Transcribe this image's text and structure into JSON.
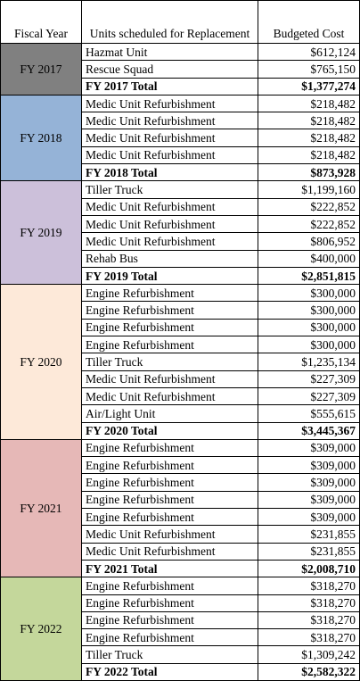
{
  "header": [
    "Fiscal Year",
    "Units scheduled for Replacement",
    "Budgeted Cost"
  ],
  "groups": [
    {
      "year": "FY 2017",
      "color": "#808080",
      "items": [
        [
          "Hazmat Unit",
          "$612,124"
        ],
        [
          "Rescue Squad",
          "$765,150"
        ]
      ],
      "total": [
        "FY 2017 Total",
        "$1,377,274"
      ]
    },
    {
      "year": "FY 2018",
      "color": "#95b3d7",
      "items": [
        [
          "Medic Unit Refurbishment",
          "$218,482"
        ],
        [
          "Medic Unit Refurbishment",
          "$218,482"
        ],
        [
          "Medic Unit Refurbishment",
          "$218,482"
        ],
        [
          "Medic Unit Refurbishment",
          "$218,482"
        ]
      ],
      "total": [
        "FY 2018 Total",
        "$873,928"
      ]
    },
    {
      "year": "FY 2019",
      "color": "#ccc0da",
      "items": [
        [
          "Tiller Truck",
          "$1,199,160"
        ],
        [
          "Medic Unit Refurbishment",
          "$222,852"
        ],
        [
          "Medic Unit Refurbishment",
          "$222,852"
        ],
        [
          "Medic Unit Refurbishment",
          "$806,952"
        ],
        [
          "Rehab Bus",
          "$400,000"
        ]
      ],
      "total": [
        "FY 2019 Total",
        "$2,851,815"
      ]
    },
    {
      "year": "FY 2020",
      "color": "#fde9d9",
      "items": [
        [
          "Engine Refurbishment",
          "$300,000"
        ],
        [
          "Engine Refurbishment",
          "$300,000"
        ],
        [
          "Engine Refurbishment",
          "$300,000"
        ],
        [
          "Engine Refurbishment",
          "$300,000"
        ],
        [
          "Tiller Truck",
          "$1,235,134"
        ],
        [
          "Medic Unit Refurbishment",
          "$227,309"
        ],
        [
          "Medic Unit Refurbishment",
          "$227,309"
        ],
        [
          "Air/Light Unit",
          "$555,615"
        ]
      ],
      "total": [
        "FY 2020 Total",
        "$3,445,367"
      ]
    },
    {
      "year": "FY 2021",
      "color": "#e6b8b7",
      "items": [
        [
          "Engine Refurbishment",
          "$309,000"
        ],
        [
          "Engine Refurbishment",
          "$309,000"
        ],
        [
          "Engine Refurbishment",
          "$309,000"
        ],
        [
          "Engine Refurbishment",
          "$309,000"
        ],
        [
          "Engine Refurbishment",
          "$309,000"
        ],
        [
          "Medic Unit Refurbishment",
          "$231,855"
        ],
        [
          "Medic Unit Refurbishment",
          "$231,855"
        ]
      ],
      "total": [
        "FY 2021 Total",
        "$2,008,710"
      ]
    },
    {
      "year": "FY 2022",
      "color": "#c4d79b",
      "items": [
        [
          "Engine Refurbishment",
          "$318,270"
        ],
        [
          "Engine Refurbishment",
          "$318,270"
        ],
        [
          "Engine Refurbishment",
          "$318,270"
        ],
        [
          "Engine Refurbishment",
          "$318,270"
        ],
        [
          "Tiller Truck",
          "$1,309,242"
        ]
      ],
      "total": [
        "FY 2022 Total",
        "$2,582,322"
      ]
    }
  ]
}
